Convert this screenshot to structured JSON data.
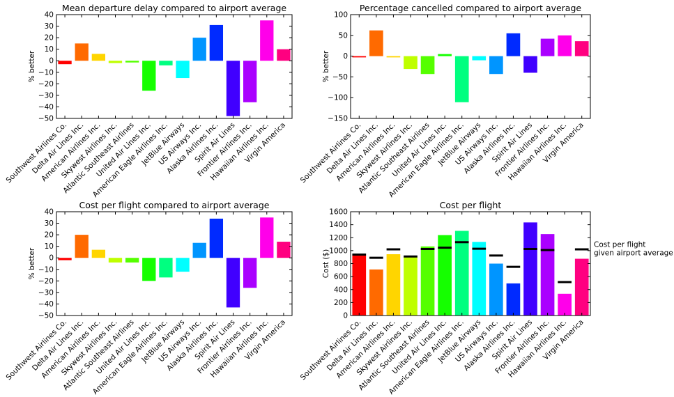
{
  "colors": [
    "#ff0000",
    "#ff6a00",
    "#ffd500",
    "#bfff00",
    "#55ff00",
    "#15ff00",
    "#00ff80",
    "#00ffff",
    "#0095ff",
    "#002aff",
    "#4000ff",
    "#aa00ff",
    "#ff00ea",
    "#ff0080"
  ],
  "chart_data": [
    {
      "type": "bar",
      "title": "Mean departure delay compared to airport average",
      "ylabel": "% better",
      "ylim": [
        -50,
        40
      ],
      "yticks": [
        -50,
        -40,
        -30,
        -20,
        -10,
        0,
        10,
        20,
        30,
        40
      ],
      "ytick_labels": [
        "−50",
        "−40",
        "−30",
        "−20",
        "−10",
        "0",
        "10",
        "20",
        "30",
        "40"
      ],
      "categories": [
        "Southwest Airlines Co.",
        "Delta Air Lines Inc.",
        "American Airlines Inc.",
        "Skywest Airlines Inc.",
        "Atlantic Southeast Airlines",
        "United Air Lines Inc.",
        "American Eagle Airlines Inc.",
        "JetBlue Airways",
        "US Airways Inc.",
        "Alaska Airlines Inc.",
        "Spirit Air Lines",
        "Frontier Airlines Inc.",
        "Hawaiian Airlines Inc.",
        "Virgin America"
      ],
      "values": [
        -3,
        15,
        6,
        -2,
        -1.5,
        -26,
        -4,
        -15,
        20,
        31,
        -48,
        -36,
        35,
        10
      ],
      "grid": false,
      "legend": "none"
    },
    {
      "type": "bar",
      "title": "Percentage cancelled compared to airport average",
      "ylabel": "% better",
      "ylim": [
        -150,
        100
      ],
      "yticks": [
        -150,
        -100,
        -50,
        0,
        50,
        100
      ],
      "ytick_labels": [
        "−150",
        "−100",
        "−50",
        "0",
        "50",
        "100"
      ],
      "categories": [
        "Southwest Airlines Co.",
        "Delta Air Lines Inc.",
        "American Airlines Inc.",
        "Skywest Airlines Inc.",
        "Atlantic Southeast Airlines",
        "United Air Lines Inc.",
        "American Eagle Airlines Inc.",
        "JetBlue Airways",
        "US Airways Inc.",
        "Alaska Airlines Inc.",
        "Spirit Air Lines",
        "Frontier Airlines Inc.",
        "Hawaiian Airlines Inc.",
        "Virgin America"
      ],
      "values": [
        -3,
        62,
        -3,
        -31,
        -43,
        5,
        -111,
        -10,
        -43,
        55,
        -40,
        42,
        50,
        36
      ],
      "grid": false,
      "legend": "none"
    },
    {
      "type": "bar",
      "title": "Cost per flight compared to airport average",
      "ylabel": "% better",
      "ylim": [
        -50,
        40
      ],
      "yticks": [
        -50,
        -40,
        -30,
        -20,
        -10,
        0,
        10,
        20,
        30,
        40
      ],
      "ytick_labels": [
        "−50",
        "−40",
        "−30",
        "−20",
        "−10",
        "0",
        "10",
        "20",
        "30",
        "40"
      ],
      "categories": [
        "Southwest Airlines Co.",
        "Delta Air Lines Inc.",
        "American Airlines Inc.",
        "Skywest Airlines Inc.",
        "Atlantic Southeast Airlines",
        "United Air Lines Inc.",
        "American Eagle Airlines Inc.",
        "JetBlue Airways",
        "US Airways Inc.",
        "Alaska Airlines Inc.",
        "Spirit Air Lines",
        "Frontier Airlines Inc.",
        "Hawaiian Airlines Inc.",
        "Virgin America"
      ],
      "values": [
        -2,
        20,
        7,
        -4,
        -4,
        -20,
        -17,
        -12,
        13,
        34,
        -43,
        -26,
        35,
        14
      ],
      "grid": false,
      "legend": "none"
    },
    {
      "type": "bar",
      "title": "Cost per flight",
      "ylabel": "Cost ($)",
      "ylim": [
        0,
        1600
      ],
      "yticks": [
        0,
        200,
        400,
        600,
        800,
        1000,
        1200,
        1400,
        1600
      ],
      "ytick_labels": [
        "0",
        "200",
        "400",
        "600",
        "800",
        "1000",
        "1200",
        "1400",
        "1600"
      ],
      "categories": [
        "Southwest Airlines Co.",
        "Delta Air Lines Inc.",
        "American Airlines Inc.",
        "Skywest Airlines Inc.",
        "Atlantic Southeast Airlines",
        "United Air Lines Inc.",
        "American Eagle Airlines Inc.",
        "JetBlue Airways",
        "US Airways Inc.",
        "Alaska Airlines Inc.",
        "Spirit Air Lines",
        "Frontier Airlines Inc.",
        "Hawaiian Airlines Inc.",
        "Virgin America"
      ],
      "values": [
        955,
        710,
        945,
        920,
        1065,
        1240,
        1305,
        1135,
        800,
        495,
        1435,
        1255,
        335,
        875
      ],
      "reference_values": [
        940,
        890,
        1020,
        910,
        1025,
        1045,
        1130,
        1030,
        925,
        750,
        1025,
        1010,
        515,
        1020
      ],
      "reference_label": "Cost per flight\ngiven airport average",
      "grid": false,
      "legend": "none"
    }
  ]
}
